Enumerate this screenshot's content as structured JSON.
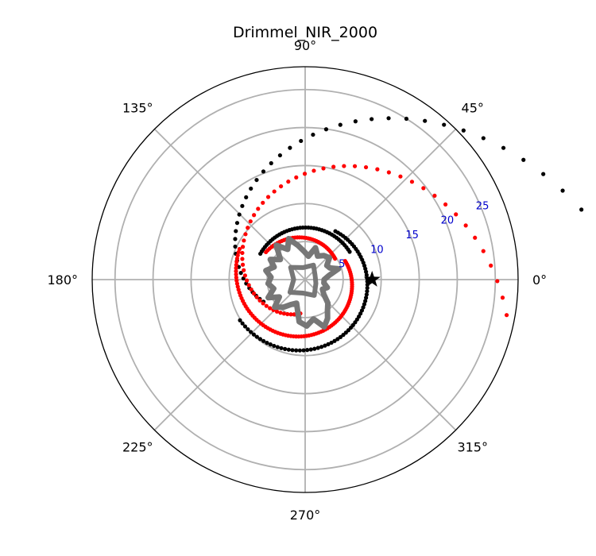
{
  "chart_data": {
    "type": "scatter",
    "projection": "polar",
    "title": "Drimmel_NIR_2000",
    "angle_ticks": [
      "0°",
      "45°",
      "90°",
      "135°",
      "180°",
      "225°",
      "270°",
      "315°"
    ],
    "radial_ticks": [
      "5",
      "10",
      "15",
      "20",
      "25"
    ],
    "rlim": [
      0,
      28
    ],
    "grid": true,
    "markers": [
      {
        "name": "star",
        "theta_deg": 0,
        "r": 8.8,
        "color": "#000000"
      }
    ],
    "series": [
      {
        "color": "#000000",
        "arms": [
          {
            "tA": 54,
            "rA": 25.9,
            "tB": 208,
            "rB": 6.2,
            "t0": -10,
            "t1": 208,
            "n": 46
          },
          {
            "tA": 212,
            "rA": 10.1,
            "tB": 418,
            "rB": 7.5,
            "t0": 212,
            "t1": 418,
            "n": 70
          },
          {
            "tA": 392,
            "rA": 6.9,
            "tB": 510,
            "rB": 6.8,
            "t0": 392,
            "t1": 510,
            "n": 40
          }
        ]
      },
      {
        "color": "#ff0000",
        "arms": [
          {
            "tA": -10,
            "rA": 26.9,
            "tB": 246,
            "rB": 5.0,
            "t0": -10,
            "t1": 262,
            "n": 58
          },
          {
            "tA": 176,
            "rA": 9.1,
            "tB": 385,
            "rB": 5.8,
            "t0": 155,
            "t1": 385,
            "n": 90
          },
          {
            "tA": 395,
            "rA": 4.8,
            "tB": 505,
            "rB": 6.3,
            "t0": 395,
            "t1": 505,
            "n": 38
          }
        ]
      },
      {
        "color": "#777777",
        "note_free": true,
        "boundary": [
          [
            0,
            2.5
          ],
          [
            10,
            3.2
          ],
          [
            18,
            4.6
          ],
          [
            25,
            3.6
          ],
          [
            33,
            3.4
          ],
          [
            42,
            4.3
          ],
          [
            52,
            4.0
          ],
          [
            62,
            3.5
          ],
          [
            72,
            4.4
          ],
          [
            82,
            3.1
          ],
          [
            92,
            3.7
          ],
          [
            102,
            4.6
          ],
          [
            112,
            5.8
          ],
          [
            120,
            4.6
          ],
          [
            130,
            5.9
          ],
          [
            141,
            4.2
          ],
          [
            150,
            5.3
          ],
          [
            158,
            4.4
          ],
          [
            167,
            5.3
          ],
          [
            176,
            4.5
          ],
          [
            186,
            4.9
          ],
          [
            196,
            4.3
          ],
          [
            206,
            5.4
          ],
          [
            214,
            4.1
          ],
          [
            222,
            5.4
          ],
          [
            232,
            4.6
          ],
          [
            240,
            3.8
          ],
          [
            250,
            3.3
          ],
          [
            262,
            5.6
          ],
          [
            272,
            6.1
          ],
          [
            282,
            5.3
          ],
          [
            292,
            6.7
          ],
          [
            300,
            5.9
          ],
          [
            306,
            5.0
          ],
          [
            314,
            4.3
          ],
          [
            322,
            3.1
          ],
          [
            331,
            2.6
          ],
          [
            340,
            3.1
          ],
          [
            350,
            2.5
          ]
        ],
        "inner": [
          [
            20,
            1.4
          ],
          [
            60,
            2.2
          ],
          [
            100,
            1.6
          ],
          [
            140,
            2.5
          ],
          [
            180,
            1.5
          ],
          [
            220,
            2.6
          ],
          [
            260,
            1.8
          ],
          [
            300,
            2.4
          ],
          [
            340,
            1.5
          ]
        ]
      }
    ]
  }
}
